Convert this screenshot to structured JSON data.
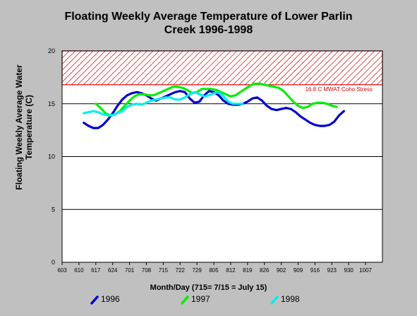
{
  "chart_data": {
    "type": "line",
    "title": [
      "Floating Weekly Average Temperature of Lower Parlin",
      "Creek 1996-1998"
    ],
    "ylabel": [
      "Floating Weekly Average Water",
      "Temperature (C)"
    ],
    "xlabel": "Month/Day (715= 7/15 = July 15)",
    "ylim": [
      0,
      20
    ],
    "yticks": [
      0,
      5,
      10,
      15,
      20
    ],
    "xticks": [
      "603",
      "610",
      "617",
      "624",
      "701",
      "708",
      "715",
      "722",
      "729",
      "805",
      "812",
      "819",
      "826",
      "902",
      "909",
      "916",
      "923",
      "930",
      "1007"
    ],
    "grid": "horizontal",
    "stress_band": {
      "label": "16.8 C MWAT Coho Stress",
      "low": 16.8,
      "high": 20,
      "color": "#dd0000"
    },
    "series": [
      {
        "name": "1996",
        "color": "#0000cc",
        "x": [
          9,
          11,
          13,
          15,
          17,
          19,
          21,
          23,
          25,
          27,
          29,
          31,
          33,
          35,
          37,
          39,
          41,
          43,
          45,
          47,
          49,
          51,
          53,
          55,
          57,
          59,
          61,
          63,
          65,
          67,
          69,
          71,
          73,
          75,
          77,
          79,
          81,
          83,
          85,
          87,
          89,
          91,
          93,
          95,
          97,
          99,
          101,
          103,
          105,
          107,
          109,
          111,
          113,
          115,
          117,
          119,
          121
        ],
        "y": [
          13.2,
          12.9,
          12.7,
          12.7,
          13.0,
          13.5,
          14.1,
          14.8,
          15.4,
          15.8,
          16.0,
          16.1,
          16.0,
          15.8,
          15.5,
          15.3,
          15.5,
          15.7,
          15.9,
          16.1,
          16.2,
          16.1,
          15.5,
          15.1,
          15.2,
          15.8,
          16.2,
          16.1,
          15.8,
          15.3,
          15.0,
          14.9,
          14.9,
          15.0,
          15.2,
          15.5,
          15.6,
          15.3,
          14.8,
          14.5,
          14.4,
          14.5,
          14.6,
          14.5,
          14.2,
          13.8,
          13.5,
          13.2,
          13.0,
          12.9,
          12.9,
          13.0,
          13.3,
          13.9,
          14.3,
          null,
          null
        ]
      },
      {
        "name": "1997",
        "color": "#00ee00",
        "x": [
          14,
          16,
          18,
          20,
          22,
          24,
          26,
          28,
          30,
          32,
          34,
          36,
          38,
          40,
          42,
          44,
          46,
          48,
          50,
          52,
          54,
          56,
          58,
          60,
          62,
          64,
          66,
          68,
          70,
          72,
          74,
          76,
          78,
          80,
          82,
          84,
          86,
          88,
          90,
          92,
          94,
          96,
          98,
          100,
          102,
          104,
          106,
          108,
          110,
          112,
          114,
          116
        ],
        "y": [
          15.0,
          14.6,
          14.1,
          13.9,
          14.0,
          14.3,
          14.8,
          15.3,
          15.7,
          15.9,
          15.9,
          15.8,
          15.8,
          16.0,
          16.2,
          16.4,
          16.6,
          16.6,
          16.5,
          16.3,
          16.0,
          16.1,
          16.4,
          16.4,
          16.4,
          16.3,
          16.1,
          15.9,
          15.7,
          15.8,
          16.1,
          16.4,
          16.7,
          16.9,
          16.9,
          16.8,
          16.7,
          16.6,
          16.5,
          16.2,
          15.7,
          15.2,
          14.8,
          14.6,
          14.7,
          15.0,
          15.1,
          15.1,
          15.0,
          14.8,
          14.7,
          null
        ]
      },
      {
        "name": "1998",
        "color": "#00eeee",
        "x": [
          9,
          11,
          13,
          15,
          17,
          19,
          21,
          23,
          25,
          27,
          29,
          31,
          33,
          35,
          37,
          39,
          41,
          43,
          45,
          47,
          49,
          51,
          53,
          55,
          57,
          59,
          61,
          63,
          65,
          67,
          69,
          71,
          73,
          75
        ],
        "y": [
          14.1,
          14.2,
          14.3,
          14.2,
          14.0,
          13.9,
          13.9,
          14.1,
          14.3,
          14.7,
          14.9,
          15.0,
          14.9,
          15.1,
          15.3,
          15.4,
          15.5,
          15.6,
          15.6,
          15.4,
          15.4,
          15.6,
          15.9,
          16.1,
          15.9,
          15.7,
          15.8,
          16.0,
          16.1,
          15.7,
          15.2,
          15.0,
          15.0,
          15.0
        ]
      }
    ],
    "x_units_note_hidden": null
  }
}
